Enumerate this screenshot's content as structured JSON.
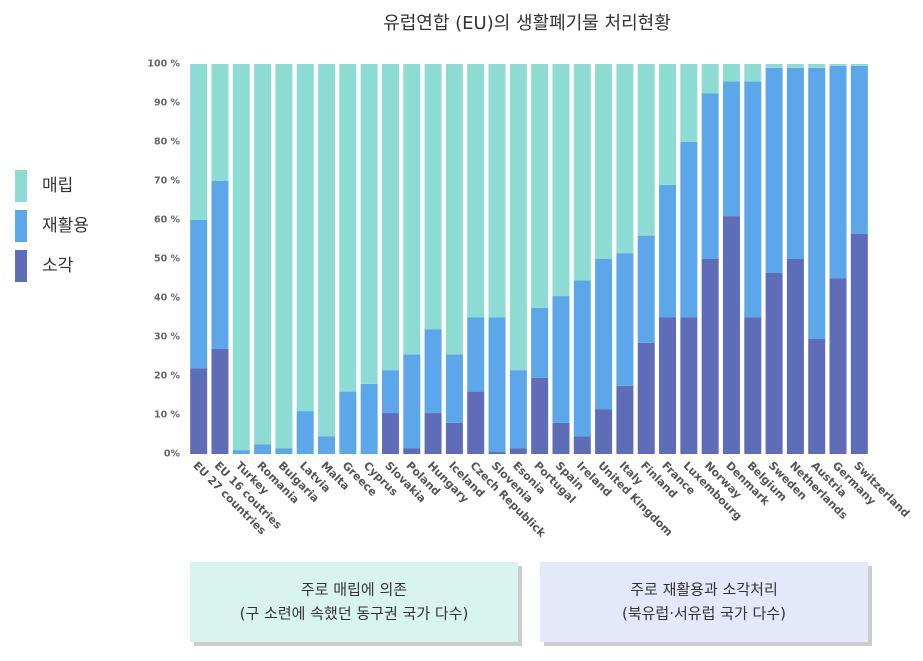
{
  "chart_data": {
    "type": "stacked_bar",
    "title": "유럽연합 (EU)의 생활폐기물 처리현황",
    "categories": [
      "EU 27 countries",
      "EU 16 coutries",
      "Turkey",
      "Romania",
      "Bulgaria",
      "Latvia",
      "Malta",
      "Greece",
      "Cyprus",
      "Slovakia",
      "Poland",
      "Hungary",
      "Iceland",
      "Czech Republick",
      "Slovenia",
      "Esonia",
      "Portugal",
      "Spain",
      "Ireland",
      "United Kingdom",
      "Italy",
      "Finland",
      "France",
      "Luxembourg",
      "Norway",
      "Denmark",
      "Belgium",
      "Sweden",
      "Netherlands",
      "Austria",
      "Germany",
      "Switzerland"
    ],
    "series": [
      {
        "name": "매립",
        "color": "#8ddcd4",
        "values": [
          40,
          30,
          99,
          97.5,
          98.5,
          89,
          95.5,
          84,
          82,
          78.5,
          74.5,
          68,
          74.5,
          65,
          65,
          78.5,
          62.5,
          59.5,
          55.5,
          50,
          48.5,
          44,
          31,
          20,
          7.5,
          4.5,
          4.5,
          1,
          1,
          1,
          0.5,
          0.5
        ]
      },
      {
        "name": "재활용",
        "color": "#5ba7e9",
        "values": [
          38,
          43,
          1,
          2.5,
          1.5,
          11,
          4.5,
          16,
          18,
          11,
          24,
          21.5,
          17.5,
          19,
          34.5,
          20,
          18,
          32.5,
          40,
          38.5,
          34,
          27.5,
          34,
          45,
          42.5,
          34.5,
          60.5,
          52.5,
          49,
          69.5,
          54.5,
          43
        ]
      },
      {
        "name": "소각",
        "color": "#5f6db8",
        "values": [
          22,
          27,
          0,
          0,
          0,
          0,
          0,
          0,
          0,
          10.5,
          1.5,
          10.5,
          8,
          16,
          0.5,
          1.5,
          19.5,
          8,
          4.5,
          11.5,
          17.5,
          28.5,
          35,
          35,
          50,
          61,
          35,
          46.5,
          50,
          29.5,
          45,
          56.5
        ]
      }
    ],
    "ylim": [
      0,
      100
    ],
    "yticks": [
      {
        "value": 0,
        "label": "0%"
      },
      {
        "value": 10,
        "label": "10 %"
      },
      {
        "value": 20,
        "label": "20 %"
      },
      {
        "value": 30,
        "label": "30 %"
      },
      {
        "value": 40,
        "label": "40 %"
      },
      {
        "value": 50,
        "label": "50 %"
      },
      {
        "value": 60,
        "label": "60 %"
      },
      {
        "value": 70,
        "label": "70 %"
      },
      {
        "value": 80,
        "label": "80 %"
      },
      {
        "value": 90,
        "label": "90 %"
      },
      {
        "value": 100,
        "label": "100 %"
      }
    ],
    "annotations": [
      {
        "lines": [
          "주로 매립에 의존",
          "(구 소련에 속했던 동구권 국가 다수)"
        ],
        "color": "#d9f4ef"
      },
      {
        "lines": [
          "주로 재활용과 소각처리",
          "(북유럽·서유럽 국가 다수)"
        ],
        "color": "#e5e8fb"
      }
    ]
  }
}
